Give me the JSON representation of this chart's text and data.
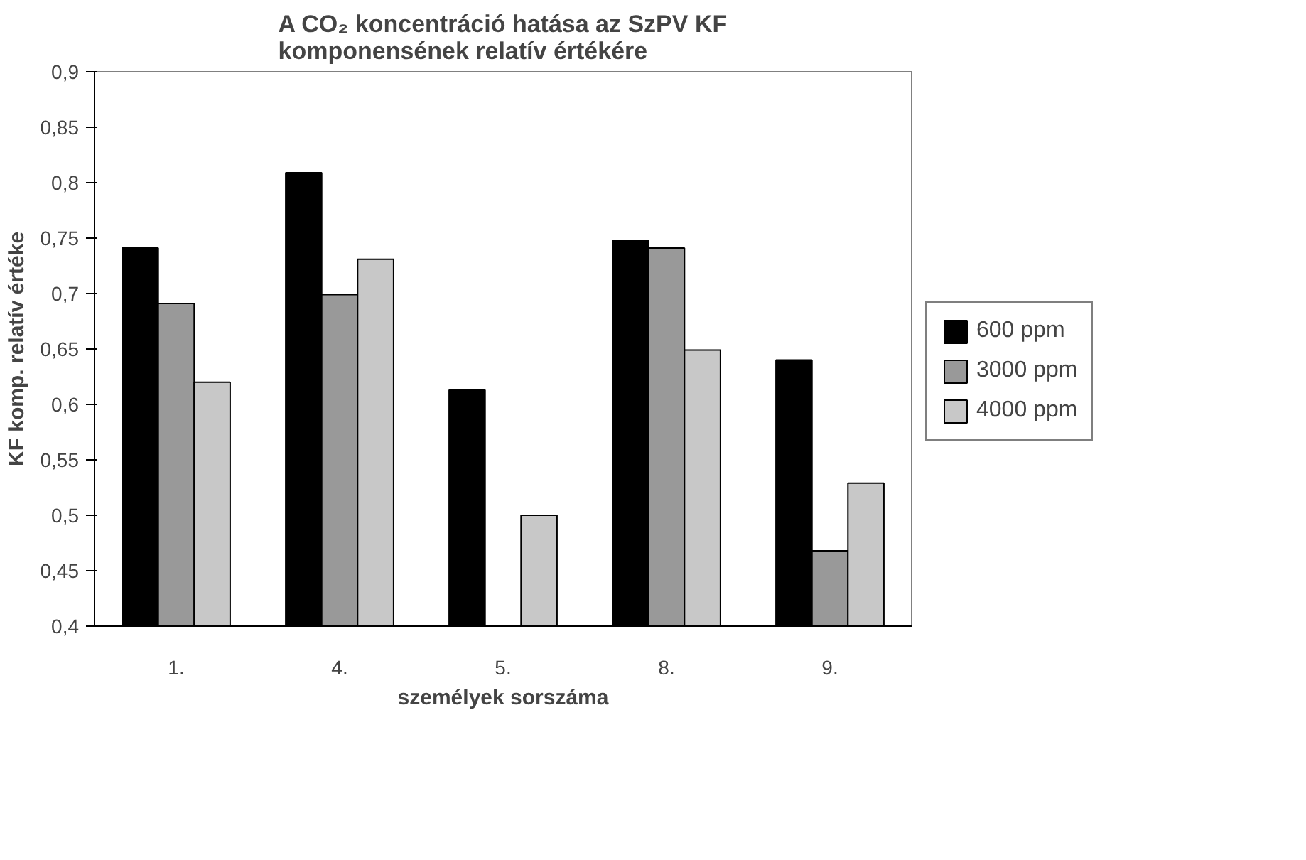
{
  "chart_data": {
    "type": "bar",
    "title": "A CO₂ koncentráció hatása az SzPV KF\nkomponensének relatív értékére",
    "xlabel": "személyek sorszáma",
    "ylabel": "KF komp. relatív értéke",
    "categories": [
      "1.",
      "4.",
      "5.",
      "8.",
      "9."
    ],
    "series": [
      {
        "name": "600 ppm",
        "color": "#000000",
        "values": [
          0.741,
          0.809,
          0.613,
          0.748,
          0.64
        ]
      },
      {
        "name": "3000 ppm",
        "color": "#999999",
        "values": [
          0.691,
          0.699,
          null,
          0.741,
          0.468
        ]
      },
      {
        "name": "4000 ppm",
        "color": "#c8c8c8",
        "values": [
          0.62,
          0.731,
          0.5,
          0.649,
          0.529
        ]
      }
    ],
    "ylim": [
      0.4,
      0.9
    ],
    "yticks": [
      {
        "value": 0.4,
        "label": "0,4"
      },
      {
        "value": 0.45,
        "label": "0,45"
      },
      {
        "value": 0.5,
        "label": "0,5"
      },
      {
        "value": 0.55,
        "label": "0,55"
      },
      {
        "value": 0.6,
        "label": "0,6"
      },
      {
        "value": 0.65,
        "label": "0,65"
      },
      {
        "value": 0.7,
        "label": "0,7"
      },
      {
        "value": 0.75,
        "label": "0,75"
      },
      {
        "value": 0.8,
        "label": "0,8"
      },
      {
        "value": 0.85,
        "label": "0,85"
      },
      {
        "value": 0.9,
        "label": "0,9"
      }
    ],
    "grid": false,
    "legend": "right"
  }
}
